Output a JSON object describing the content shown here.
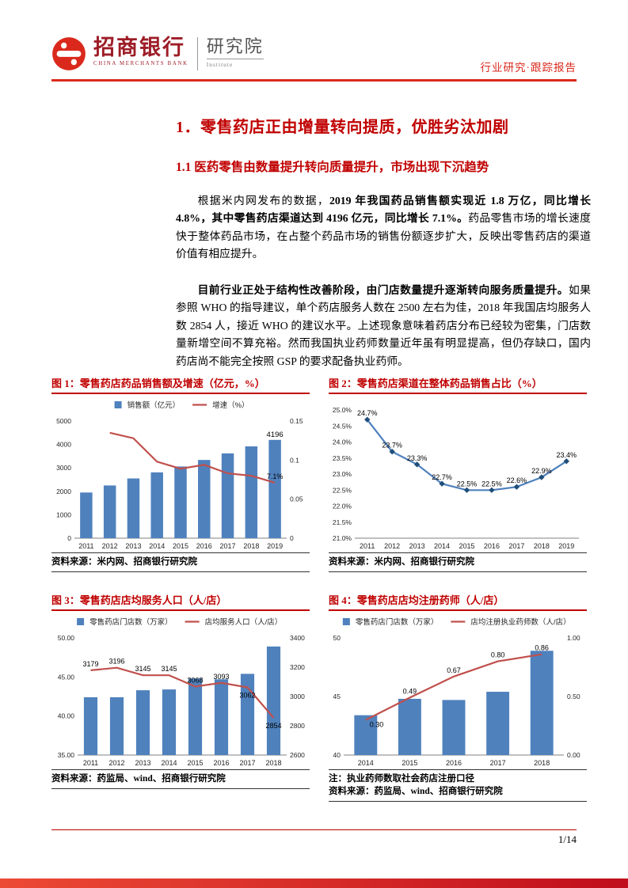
{
  "header": {
    "bank_cn": "招商银行",
    "bank_en": "CHINA MERCHANTS BANK",
    "institute_cn": "研究院",
    "institute_en": "Institute",
    "report_type": "行业研究·跟踪报告"
  },
  "title": "1．零售药店正由增量转向提质，优胜劣汰加剧",
  "subtitle": "1.1 医药零售由数量提升转向质量提升，市场出现下沉趋势",
  "paragraphs": [
    {
      "lead": "根据米内网发布的数据，",
      "bold": "2019 年我国药品销售额实现近 1.8 万亿，同比增长 4.8%，其中零售药店渠道达到 4196 亿元，同比增长 7.1%。",
      "rest": "药品零售市场的增长速度快于整体药品市场，在占整个药品市场的销售份额逐步扩大，反映出零售药店的渠道价值有相应提升。"
    },
    {
      "lead": "",
      "bold": "目前行业正处于结构性改善阶段，由门店数量提升逐渐转向服务质量提升。",
      "rest": "如果参照 WHO 的指导建议，单个药店服务人数在 2500 左右为佳，2018 年我国店均服务人数 2854 人，接近 WHO 的建议水平。上述现象意味着药店分布已经较为密集，门店数量新增空间不算充裕。然而我国执业药师数量近年虽有明显提高，但仍存缺口，国内药店尚不能完全按照 GSP 的要求配备执业药师。"
    }
  ],
  "figures": [
    {
      "title": "图 1：零售药店药品销售额及增速（亿元，%）",
      "source": "资料来源：米内网、招商银行研究院"
    },
    {
      "title": "图 2：零售药店渠道在整体药品销售占比（%）",
      "source": "资料来源：米内网、招商银行研究院"
    },
    {
      "title": "图 3：零售药店店均服务人口（人/店）",
      "source": "资料来源：药监局、wind、招商银行研究院"
    },
    {
      "title": "图 4：零售药店店均注册药师（人/店）",
      "note": "注：执业药师数取社会药店注册口径",
      "source": "资料来源：药监局、wind、招商银行研究院"
    }
  ],
  "chart_data": [
    {
      "type": "bar+line",
      "title": "零售药店药品销售额及增速（亿元，%）",
      "legend": true,
      "colors": {
        "bar": "#4F81BD",
        "line": "#C0504D"
      },
      "categories": [
        "2011",
        "2012",
        "2013",
        "2014",
        "2015",
        "2016",
        "2017",
        "2018",
        "2019"
      ],
      "series": [
        {
          "name": "销售额（亿元）",
          "kind": "bar",
          "axis": "left",
          "values": [
            1950,
            2250,
            2550,
            2810,
            3060,
            3340,
            3620,
            3920,
            4196
          ],
          "labels": [
            null,
            null,
            null,
            null,
            null,
            null,
            null,
            null,
            "4196"
          ]
        },
        {
          "name": "增速（%）",
          "kind": "line",
          "axis": "right",
          "values": [
            null,
            0.135,
            0.128,
            0.098,
            0.089,
            0.094,
            0.083,
            0.08,
            0.071
          ],
          "labels": [
            null,
            null,
            null,
            null,
            null,
            null,
            null,
            null,
            "7.1%"
          ]
        }
      ],
      "left_axis": {
        "min": 0,
        "max": 5000,
        "ticks": [
          "0",
          "1000",
          "2000",
          "3000",
          "4000",
          "5000"
        ]
      },
      "right_axis": {
        "min": 0,
        "max": 0.15,
        "ticks": [
          "0",
          "0.05",
          "0.1",
          "0.15"
        ]
      }
    },
    {
      "type": "line",
      "title": "零售药店渠道在整体药品销售占比（%）",
      "legend": false,
      "colors": {
        "line": "#4F81BD",
        "marker": "#1F4E79"
      },
      "categories": [
        "2011",
        "2012",
        "2013",
        "2014",
        "2015",
        "2016",
        "2017",
        "2018",
        "2019"
      ],
      "series": [
        {
          "name": "零售药店渠道占比",
          "kind": "line",
          "axis": "left",
          "markers": true,
          "values": [
            24.7,
            23.7,
            23.3,
            22.7,
            22.5,
            22.5,
            22.6,
            22.9,
            23.4
          ],
          "labels": [
            "24.7%",
            "23.7%",
            "23.3%",
            "22.7%",
            "22.5%",
            "22.5%",
            "22.6%",
            "22.9%",
            "23.4%"
          ]
        }
      ],
      "left_axis": {
        "min": 21,
        "max": 25,
        "ticks": [
          "21.0%",
          "21.5%",
          "22.0%",
          "22.5%",
          "23.0%",
          "23.5%",
          "24.0%",
          "24.5%",
          "25.0%"
        ]
      },
      "right_axis": null
    },
    {
      "type": "bar+line",
      "title": "零售药店店均服务人口（人/店）",
      "legend": true,
      "colors": {
        "bar": "#4F81BD",
        "line": "#C0504D"
      },
      "categories": [
        "2011",
        "2012",
        "2013",
        "2014",
        "2015",
        "2016",
        "2017",
        "2018"
      ],
      "series": [
        {
          "name": "零售药店门店数（万家）",
          "kind": "bar",
          "axis": "left",
          "values": [
            42.4,
            42.4,
            43.3,
            43.4,
            44.8,
            44.7,
            45.4,
            48.9
          ]
        },
        {
          "name": "店均服务人口（人/店）",
          "kind": "line",
          "axis": "right",
          "values": [
            3179,
            3196,
            3145,
            3145,
            3068,
            3093,
            3062,
            2854
          ],
          "labels": [
            "3179",
            "3196",
            "3145",
            "3145",
            "3068",
            "3093",
            "3062",
            "2854"
          ],
          "label_pos": [
            "above",
            "above",
            "above",
            "above",
            "above",
            "above",
            "below",
            "below"
          ]
        }
      ],
      "left_axis": {
        "min": 35,
        "max": 50,
        "ticks": [
          "35.00",
          "40.00",
          "45.00",
          "50.00"
        ]
      },
      "right_axis": {
        "min": 2600,
        "max": 3400,
        "ticks": [
          "2600",
          "2800",
          "3000",
          "3200",
          "3400"
        ]
      }
    },
    {
      "type": "bar+line",
      "title": "零售药店店均注册药师（人/店）",
      "legend": true,
      "colors": {
        "bar": "#4F81BD",
        "line": "#C0504D"
      },
      "categories": [
        "2014",
        "2015",
        "2016",
        "2017",
        "2018"
      ],
      "series": [
        {
          "name": "零售药店门店数（万家）",
          "kind": "bar",
          "axis": "left",
          "values": [
            43.4,
            44.8,
            44.7,
            45.4,
            48.9
          ]
        },
        {
          "name": "店均注册执业药师数（人/店）",
          "kind": "line",
          "axis": "right",
          "values": [
            0.3,
            0.49,
            0.67,
            0.8,
            0.86
          ],
          "labels": [
            "0.30",
            "0.49",
            "0.67",
            "0.80",
            "0.86"
          ],
          "label_pos": [
            "right",
            "above",
            "above",
            "above",
            "above"
          ]
        }
      ],
      "left_axis": {
        "min": 40,
        "max": 50,
        "ticks": [
          "40",
          "45",
          "50"
        ]
      },
      "right_axis": {
        "min": 0,
        "max": 1,
        "ticks": [
          "0.00",
          "0.50",
          "1.00"
        ]
      }
    }
  ],
  "colors": {
    "brand_red": "#DA291C",
    "heading_red": "#C00000",
    "logo_dark_red": "#9D1D27"
  },
  "footer": {
    "page": "1/14"
  }
}
